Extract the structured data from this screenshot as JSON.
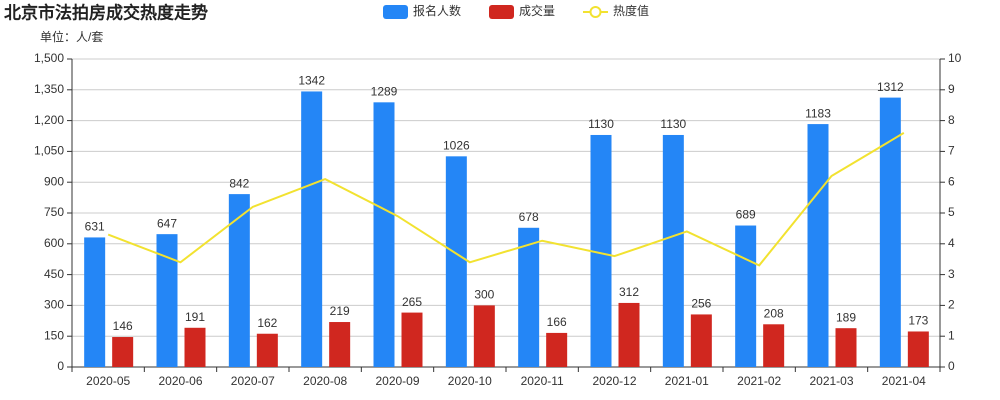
{
  "chart_data": {
    "type": "bar",
    "title": "北京市法拍房成交热度走势",
    "subtitle": "单位：人/套",
    "categories": [
      "2020-05",
      "2020-06",
      "2020-07",
      "2020-08",
      "2020-09",
      "2020-10",
      "2020-11",
      "2020-12",
      "2021-01",
      "2021-02",
      "2021-03",
      "2021-04"
    ],
    "series": [
      {
        "name": "报名人数",
        "type": "bar",
        "color": "#2486f6",
        "values": [
          631,
          647,
          842,
          1342,
          1289,
          1026,
          678,
          1130,
          1130,
          689,
          1183,
          1312
        ]
      },
      {
        "name": "成交量",
        "type": "bar",
        "color": "#d0271f",
        "values": [
          146,
          191,
          162,
          219,
          265,
          300,
          166,
          312,
          256,
          208,
          189,
          173
        ]
      },
      {
        "name": "热度值",
        "type": "line",
        "axis": "y2",
        "color": "#f2e230",
        "values": [
          4.3,
          3.4,
          5.2,
          6.1,
          4.9,
          3.4,
          4.1,
          3.6,
          4.4,
          3.3,
          6.2,
          7.6
        ]
      }
    ],
    "ylim": [
      0,
      1500
    ],
    "yticks": [
      0,
      150,
      300,
      450,
      600,
      750,
      900,
      {
        "value": 1050,
        "label": "1,050"
      },
      {
        "value": 1200,
        "label": "1,200"
      },
      {
        "value": 1350,
        "label": "1,350"
      },
      {
        "value": 1500,
        "label": "1,500"
      }
    ],
    "y2lim": [
      0,
      10
    ],
    "y2ticks": [
      0,
      1,
      2,
      3,
      4,
      5,
      6,
      7,
      8,
      9,
      10
    ],
    "grid": true
  }
}
